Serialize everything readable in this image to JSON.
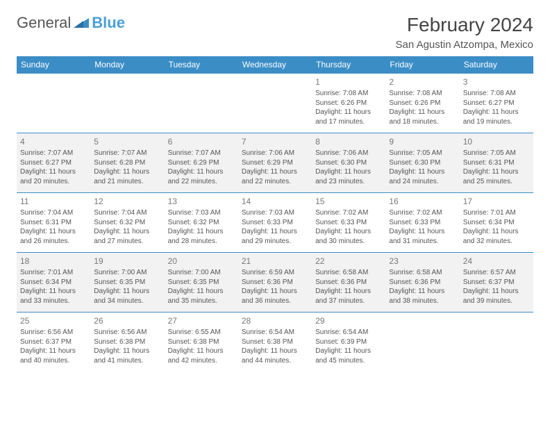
{
  "logo": {
    "part1": "General",
    "part2": "Blue"
  },
  "title": "February 2024",
  "location": "San Agustin Atzompa, Mexico",
  "colors": {
    "header_bg": "#3b8dc6",
    "header_text": "#ffffff",
    "row_alt_bg": "#f2f2f2",
    "border": "#3b8dc6",
    "logo_blue": "#4a9fd8",
    "text": "#555555"
  },
  "fonts": {
    "title_size": 28,
    "location_size": 15,
    "dayhead_size": 12,
    "cell_size": 10,
    "daynum_size": 12
  },
  "dayHeaders": [
    "Sunday",
    "Monday",
    "Tuesday",
    "Wednesday",
    "Thursday",
    "Friday",
    "Saturday"
  ],
  "weeks": [
    [
      {
        "empty": true
      },
      {
        "empty": true
      },
      {
        "empty": true
      },
      {
        "empty": true
      },
      {
        "day": "1",
        "sunrise": "Sunrise: 7:08 AM",
        "sunset": "Sunset: 6:26 PM",
        "daylight1": "Daylight: 11 hours",
        "daylight2": "and 17 minutes."
      },
      {
        "day": "2",
        "sunrise": "Sunrise: 7:08 AM",
        "sunset": "Sunset: 6:26 PM",
        "daylight1": "Daylight: 11 hours",
        "daylight2": "and 18 minutes."
      },
      {
        "day": "3",
        "sunrise": "Sunrise: 7:08 AM",
        "sunset": "Sunset: 6:27 PM",
        "daylight1": "Daylight: 11 hours",
        "daylight2": "and 19 minutes."
      }
    ],
    [
      {
        "day": "4",
        "sunrise": "Sunrise: 7:07 AM",
        "sunset": "Sunset: 6:27 PM",
        "daylight1": "Daylight: 11 hours",
        "daylight2": "and 20 minutes."
      },
      {
        "day": "5",
        "sunrise": "Sunrise: 7:07 AM",
        "sunset": "Sunset: 6:28 PM",
        "daylight1": "Daylight: 11 hours",
        "daylight2": "and 21 minutes."
      },
      {
        "day": "6",
        "sunrise": "Sunrise: 7:07 AM",
        "sunset": "Sunset: 6:29 PM",
        "daylight1": "Daylight: 11 hours",
        "daylight2": "and 22 minutes."
      },
      {
        "day": "7",
        "sunrise": "Sunrise: 7:06 AM",
        "sunset": "Sunset: 6:29 PM",
        "daylight1": "Daylight: 11 hours",
        "daylight2": "and 22 minutes."
      },
      {
        "day": "8",
        "sunrise": "Sunrise: 7:06 AM",
        "sunset": "Sunset: 6:30 PM",
        "daylight1": "Daylight: 11 hours",
        "daylight2": "and 23 minutes."
      },
      {
        "day": "9",
        "sunrise": "Sunrise: 7:05 AM",
        "sunset": "Sunset: 6:30 PM",
        "daylight1": "Daylight: 11 hours",
        "daylight2": "and 24 minutes."
      },
      {
        "day": "10",
        "sunrise": "Sunrise: 7:05 AM",
        "sunset": "Sunset: 6:31 PM",
        "daylight1": "Daylight: 11 hours",
        "daylight2": "and 25 minutes."
      }
    ],
    [
      {
        "day": "11",
        "sunrise": "Sunrise: 7:04 AM",
        "sunset": "Sunset: 6:31 PM",
        "daylight1": "Daylight: 11 hours",
        "daylight2": "and 26 minutes."
      },
      {
        "day": "12",
        "sunrise": "Sunrise: 7:04 AM",
        "sunset": "Sunset: 6:32 PM",
        "daylight1": "Daylight: 11 hours",
        "daylight2": "and 27 minutes."
      },
      {
        "day": "13",
        "sunrise": "Sunrise: 7:03 AM",
        "sunset": "Sunset: 6:32 PM",
        "daylight1": "Daylight: 11 hours",
        "daylight2": "and 28 minutes."
      },
      {
        "day": "14",
        "sunrise": "Sunrise: 7:03 AM",
        "sunset": "Sunset: 6:33 PM",
        "daylight1": "Daylight: 11 hours",
        "daylight2": "and 29 minutes."
      },
      {
        "day": "15",
        "sunrise": "Sunrise: 7:02 AM",
        "sunset": "Sunset: 6:33 PM",
        "daylight1": "Daylight: 11 hours",
        "daylight2": "and 30 minutes."
      },
      {
        "day": "16",
        "sunrise": "Sunrise: 7:02 AM",
        "sunset": "Sunset: 6:33 PM",
        "daylight1": "Daylight: 11 hours",
        "daylight2": "and 31 minutes."
      },
      {
        "day": "17",
        "sunrise": "Sunrise: 7:01 AM",
        "sunset": "Sunset: 6:34 PM",
        "daylight1": "Daylight: 11 hours",
        "daylight2": "and 32 minutes."
      }
    ],
    [
      {
        "day": "18",
        "sunrise": "Sunrise: 7:01 AM",
        "sunset": "Sunset: 6:34 PM",
        "daylight1": "Daylight: 11 hours",
        "daylight2": "and 33 minutes."
      },
      {
        "day": "19",
        "sunrise": "Sunrise: 7:00 AM",
        "sunset": "Sunset: 6:35 PM",
        "daylight1": "Daylight: 11 hours",
        "daylight2": "and 34 minutes."
      },
      {
        "day": "20",
        "sunrise": "Sunrise: 7:00 AM",
        "sunset": "Sunset: 6:35 PM",
        "daylight1": "Daylight: 11 hours",
        "daylight2": "and 35 minutes."
      },
      {
        "day": "21",
        "sunrise": "Sunrise: 6:59 AM",
        "sunset": "Sunset: 6:36 PM",
        "daylight1": "Daylight: 11 hours",
        "daylight2": "and 36 minutes."
      },
      {
        "day": "22",
        "sunrise": "Sunrise: 6:58 AM",
        "sunset": "Sunset: 6:36 PM",
        "daylight1": "Daylight: 11 hours",
        "daylight2": "and 37 minutes."
      },
      {
        "day": "23",
        "sunrise": "Sunrise: 6:58 AM",
        "sunset": "Sunset: 6:36 PM",
        "daylight1": "Daylight: 11 hours",
        "daylight2": "and 38 minutes."
      },
      {
        "day": "24",
        "sunrise": "Sunrise: 6:57 AM",
        "sunset": "Sunset: 6:37 PM",
        "daylight1": "Daylight: 11 hours",
        "daylight2": "and 39 minutes."
      }
    ],
    [
      {
        "day": "25",
        "sunrise": "Sunrise: 6:56 AM",
        "sunset": "Sunset: 6:37 PM",
        "daylight1": "Daylight: 11 hours",
        "daylight2": "and 40 minutes."
      },
      {
        "day": "26",
        "sunrise": "Sunrise: 6:56 AM",
        "sunset": "Sunset: 6:38 PM",
        "daylight1": "Daylight: 11 hours",
        "daylight2": "and 41 minutes."
      },
      {
        "day": "27",
        "sunrise": "Sunrise: 6:55 AM",
        "sunset": "Sunset: 6:38 PM",
        "daylight1": "Daylight: 11 hours",
        "daylight2": "and 42 minutes."
      },
      {
        "day": "28",
        "sunrise": "Sunrise: 6:54 AM",
        "sunset": "Sunset: 6:38 PM",
        "daylight1": "Daylight: 11 hours",
        "daylight2": "and 44 minutes."
      },
      {
        "day": "29",
        "sunrise": "Sunrise: 6:54 AM",
        "sunset": "Sunset: 6:39 PM",
        "daylight1": "Daylight: 11 hours",
        "daylight2": "and 45 minutes."
      },
      {
        "empty": true
      },
      {
        "empty": true
      }
    ]
  ]
}
